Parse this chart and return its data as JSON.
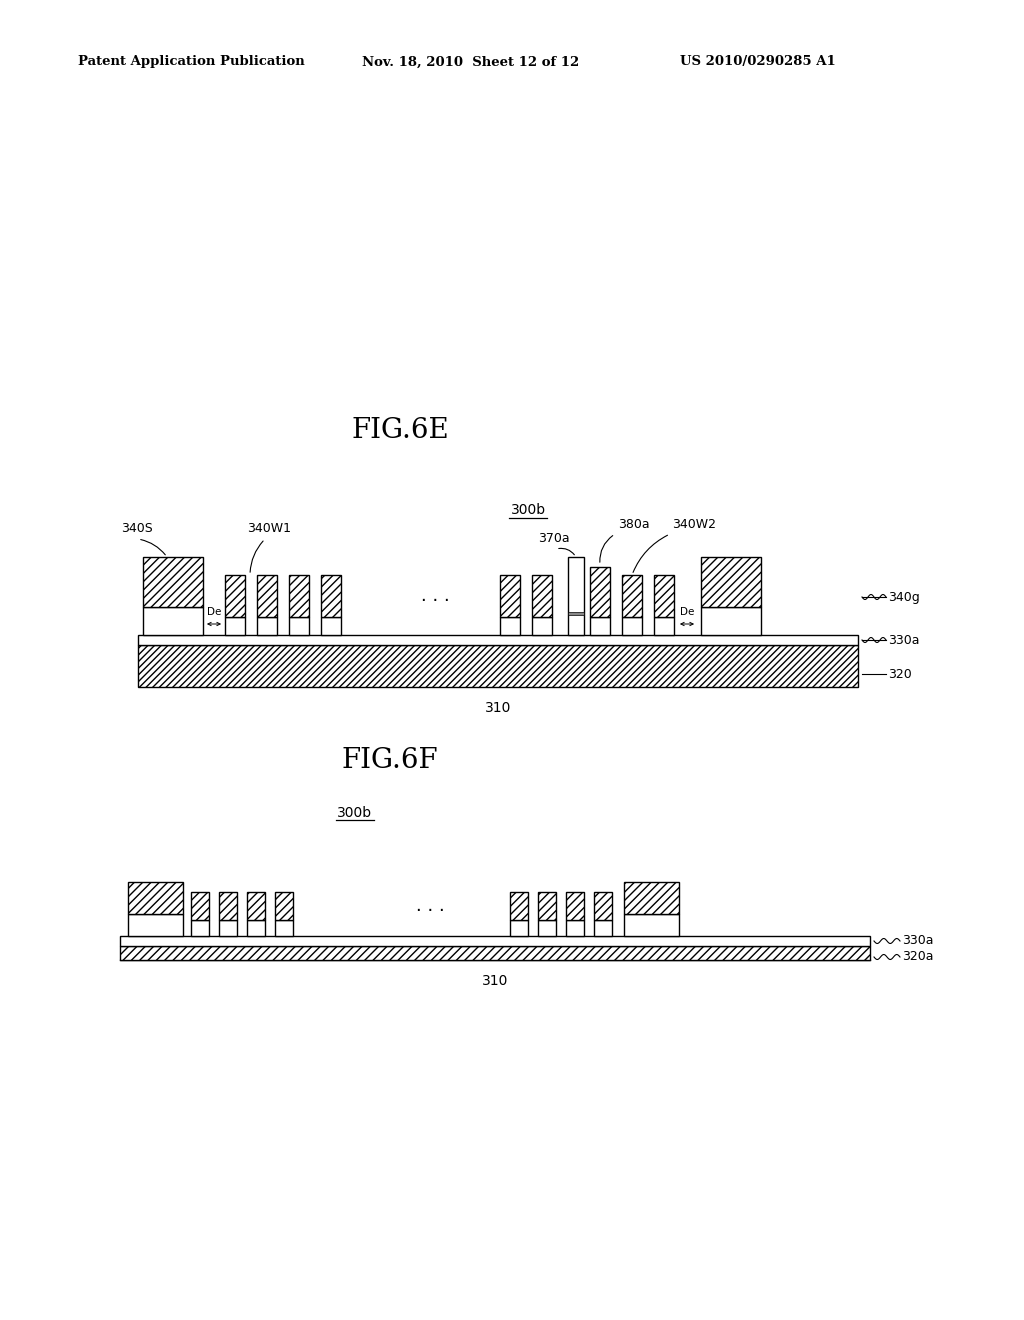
{
  "header_left": "Patent Application Publication",
  "header_mid": "Nov. 18, 2010  Sheet 12 of 12",
  "header_right": "US 2010/0290285 A1",
  "fig6e_title": "FIG.6E",
  "fig6f_title": "FIG.6F",
  "bg_color": "#ffffff",
  "line_color": "#000000",
  "label_300b_6e": "300b",
  "label_310_6e": "310",
  "label_320": "320",
  "label_330a": "330a",
  "label_340g": "340g",
  "label_340S": "340S",
  "label_340W1": "340W1",
  "label_340W2": "340W2",
  "label_370a": "370a",
  "label_380a": "380a",
  "label_De": "De",
  "label_300b_6f": "300b",
  "label_310_6f": "310",
  "label_320a": "320a",
  "label_330a_6f": "330a"
}
